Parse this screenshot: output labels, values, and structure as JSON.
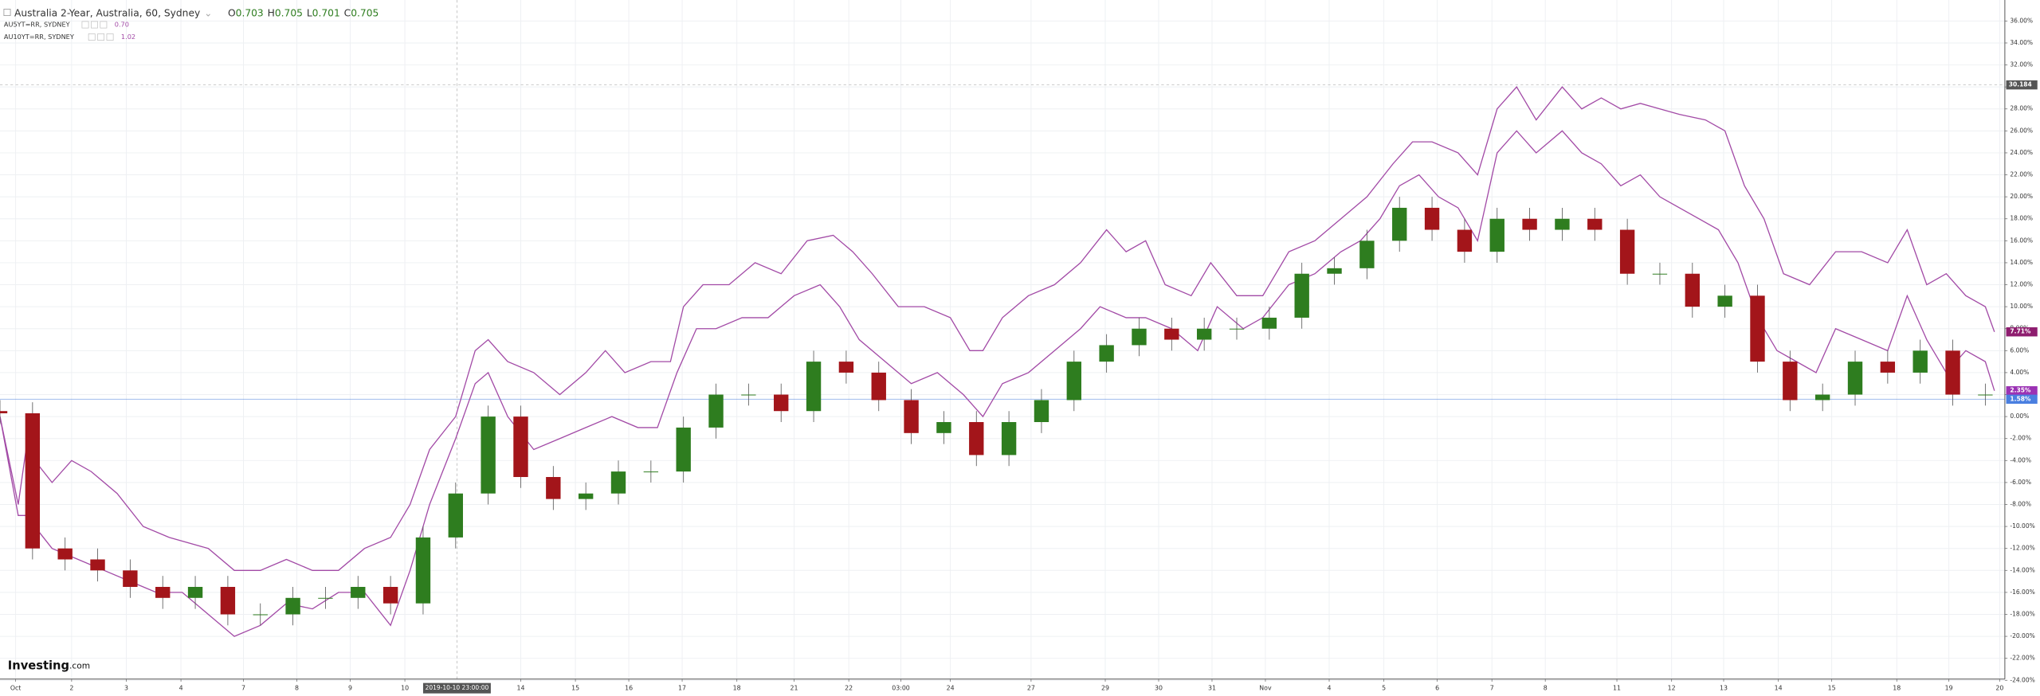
{
  "chart_data": {
    "type": "candlestick",
    "title": "Australia 2-Year, Australia, 60, Sydney",
    "ohlc": [
      {
        "label": "O",
        "value": 0.703
      },
      {
        "label": "H",
        "value": 0.705
      },
      {
        "label": "L",
        "value": 0.701
      },
      {
        "label": "C",
        "value": 0.705
      }
    ],
    "logo": "Investing",
    "logo_suffix": ".com",
    "up_color": "#2e7d1f",
    "down_color": "#a3151a",
    "xlim": [
      0,
      1540
    ],
    "ylim": [
      -24.6,
      37.2
    ],
    "grid": true,
    "xticks": [
      {
        "value": 12,
        "label": "Oct"
      },
      {
        "value": 55,
        "label": "2"
      },
      {
        "value": 97,
        "label": "3"
      },
      {
        "value": 139,
        "label": "4"
      },
      {
        "value": 187,
        "label": "7"
      },
      {
        "value": 228,
        "label": "8"
      },
      {
        "value": 269,
        "label": "9"
      },
      {
        "value": 311,
        "label": "10"
      },
      {
        "value": 400,
        "label": "14"
      },
      {
        "value": 442,
        "label": "15"
      },
      {
        "value": 483,
        "label": "16"
      },
      {
        "value": 524,
        "label": "17"
      },
      {
        "value": 566,
        "label": "18"
      },
      {
        "value": 610,
        "label": "21"
      },
      {
        "value": 652,
        "label": "22"
      },
      {
        "value": 692,
        "label": "03:00"
      },
      {
        "value": 730,
        "label": "24"
      },
      {
        "value": 792,
        "label": "27"
      },
      {
        "value": 849,
        "label": "29"
      },
      {
        "value": 890,
        "label": "30"
      },
      {
        "value": 931,
        "label": "31"
      },
      {
        "value": 972,
        "label": "Nov"
      },
      {
        "value": 1021,
        "label": "4"
      },
      {
        "value": 1063,
        "label": "5"
      },
      {
        "value": 1104,
        "label": "6"
      },
      {
        "value": 1146,
        "label": "7"
      },
      {
        "value": 1187,
        "label": "8"
      },
      {
        "value": 1242,
        "label": "11"
      },
      {
        "value": 1284,
        "label": "12"
      },
      {
        "value": 1324,
        "label": "13"
      },
      {
        "value": 1366,
        "label": "14"
      },
      {
        "value": 1407,
        "label": "15"
      },
      {
        "value": 1457,
        "label": "18"
      },
      {
        "value": 1497,
        "label": "19"
      },
      {
        "value": 1536,
        "label": "20"
      }
    ],
    "yticks": [
      {
        "value": 36,
        "label": "36.00%"
      },
      {
        "value": 34,
        "label": "34.00%"
      },
      {
        "value": 32,
        "label": "32.00%"
      },
      {
        "value": 30,
        "label": "30.00%"
      },
      {
        "value": 28,
        "label": "28.00%"
      },
      {
        "value": 26,
        "label": "26.00%"
      },
      {
        "value": 24,
        "label": "24.00%"
      },
      {
        "value": 22,
        "label": "22.00%"
      },
      {
        "value": 20,
        "label": "20.00%"
      },
      {
        "value": 18,
        "label": "18.00%"
      },
      {
        "value": 16,
        "label": "16.00%"
      },
      {
        "value": 14,
        "label": "14.00%"
      },
      {
        "value": 12,
        "label": "12.00%"
      },
      {
        "value": 10,
        "label": "10.00%"
      },
      {
        "value": 8,
        "label": "8.00%"
      },
      {
        "value": 6,
        "label": "6.00%"
      },
      {
        "value": 4,
        "label": "4.00%"
      },
      {
        "value": 2,
        "label": "2.00%"
      },
      {
        "value": 0,
        "label": "0.00%"
      },
      {
        "value": -2,
        "label": "-2.00%"
      },
      {
        "value": -4,
        "label": "-4.00%"
      },
      {
        "value": -6,
        "label": "-6.00%"
      },
      {
        "value": -8,
        "label": "-8.00%"
      },
      {
        "value": -10,
        "label": "-10.00%"
      },
      {
        "value": -12,
        "label": "-12.00%"
      },
      {
        "value": -14,
        "label": "-14.00%"
      },
      {
        "value": -16,
        "label": "-16.00%"
      },
      {
        "value": -18,
        "label": "-18.00%"
      },
      {
        "value": -20,
        "label": "-20.00%"
      },
      {
        "value": -22,
        "label": "-22.00%"
      },
      {
        "value": -24,
        "label": "-24.00%"
      }
    ],
    "crosshair": {
      "x": 351,
      "x_label": "2019-10-10 23:00:00",
      "y": 30.184
    },
    "candles": {
      "x": [
        0,
        25,
        50,
        75,
        100,
        125,
        150,
        175,
        200,
        225,
        250,
        275,
        300,
        325,
        350,
        375,
        400,
        425,
        450,
        475,
        500,
        525,
        550,
        575,
        600,
        625,
        650,
        675,
        700,
        725,
        750,
        775,
        800,
        825,
        850,
        875,
        900,
        925,
        950,
        975,
        1000,
        1025,
        1050,
        1075,
        1100,
        1125,
        1150,
        1175,
        1200,
        1225,
        1250,
        1275,
        1300,
        1325,
        1350,
        1375,
        1400,
        1425,
        1450,
        1475,
        1500,
        1525
      ],
      "open": [
        0.5,
        0.3,
        -12,
        -13,
        -14,
        -15.5,
        -16.5,
        -15.5,
        -18,
        -18,
        -16.5,
        -16.5,
        -15.5,
        -17,
        -11,
        -7,
        0,
        -5.5,
        -7.5,
        -7,
        -5,
        -5,
        -1,
        2,
        2,
        0.5,
        5,
        4,
        1.5,
        -1.5,
        -0.5,
        -3.5,
        -0.5,
        1.5,
        5,
        6.5,
        8,
        7,
        8,
        8,
        9,
        13,
        13.5,
        16,
        19,
        17,
        15,
        18,
        17,
        18,
        17,
        13,
        13,
        10,
        11,
        5,
        1.5,
        2,
        5,
        4,
        6,
        2
      ],
      "high": [
        1.5,
        1.3,
        -11,
        -12,
        -13,
        -14.5,
        -14.5,
        -14.5,
        -17,
        -15.5,
        -15.5,
        -14.5,
        -14.5,
        -10,
        -6,
        1,
        1,
        -4.5,
        -6,
        -4,
        -4,
        0,
        3,
        3,
        3,
        6,
        6,
        5,
        2.5,
        0.5,
        0.5,
        0.5,
        2.5,
        6,
        7.5,
        9,
        9,
        9,
        9,
        10,
        14,
        14.5,
        17,
        20,
        20,
        18,
        19,
        19,
        19,
        19,
        18,
        14,
        14,
        12,
        12,
        6,
        3,
        6,
        6,
        7,
        7,
        3
      ],
      "low": [
        -0.7,
        -13,
        -14,
        -15,
        -16.5,
        -17.5,
        -17.5,
        -19,
        -19,
        -19,
        -17.5,
        -17.5,
        -18,
        -18,
        -12,
        -8,
        -6.5,
        -8.5,
        -8.5,
        -8,
        -6,
        -6,
        -2,
        1,
        -0.5,
        -0.5,
        3,
        0.5,
        -2.5,
        -2.5,
        -4.5,
        -4.5,
        -1.5,
        0.5,
        4,
        5.5,
        6,
        6,
        7,
        7,
        8,
        12,
        12.5,
        15,
        16,
        14,
        14,
        16,
        16,
        16,
        12,
        12,
        9,
        9,
        4,
        0.5,
        0.5,
        1,
        3,
        3,
        1,
        1
      ],
      "close": [
        0.3,
        -12,
        -13,
        -14,
        -15.5,
        -16.5,
        -15.5,
        -18,
        -18,
        -16.5,
        -16.5,
        -15.5,
        -17,
        -11,
        -7,
        0,
        -5.5,
        -7.5,
        -7,
        -5,
        -5,
        -1,
        2,
        2,
        0.5,
        5,
        4,
        1.5,
        -1.5,
        -0.5,
        -3.5,
        -0.5,
        1.5,
        5,
        6.5,
        8,
        7,
        8,
        8,
        9,
        13,
        13.5,
        16,
        19,
        17,
        15,
        18,
        17,
        18,
        17,
        13,
        13,
        10,
        11,
        5,
        1.5,
        2,
        5,
        4,
        6,
        2,
        2
      ]
    },
    "series": [
      {
        "name": "AU5YT=RR, SYDNEY",
        "legend_value": "0.70",
        "color": "#a24aa6",
        "x": [
          0,
          14,
          20,
          40,
          60,
          80,
          100,
          120,
          140,
          160,
          180,
          200,
          220,
          240,
          260,
          280,
          300,
          315,
          330,
          350,
          365,
          375,
          390,
          410,
          430,
          450,
          470,
          490,
          505,
          520,
          535,
          550,
          570,
          590,
          610,
          630,
          645,
          660,
          680,
          700,
          720,
          740,
          755,
          770,
          790,
          810,
          830,
          845,
          865,
          880,
          900,
          920,
          935,
          955,
          970,
          990,
          1010,
          1030,
          1045,
          1060,
          1075,
          1090,
          1105,
          1120,
          1135,
          1150,
          1165,
          1180,
          1200,
          1215,
          1230,
          1245,
          1260,
          1275,
          1290,
          1305,
          1320,
          1335,
          1350,
          1365,
          1380,
          1395,
          1410,
          1430,
          1450,
          1465,
          1480,
          1495,
          1510,
          1525,
          1532
        ],
        "values": [
          0,
          -9,
          -9,
          -12,
          -13,
          -14,
          -15,
          -16,
          -16,
          -18,
          -20,
          -19,
          -17,
          -17.5,
          -16,
          -16,
          -19,
          -14,
          -8,
          -2,
          3,
          4,
          0,
          -3,
          -2,
          -1,
          0,
          -1,
          -1,
          4,
          8,
          8,
          9,
          9,
          11,
          12,
          10,
          7,
          5,
          3,
          4,
          2,
          0,
          3,
          4,
          6,
          8,
          10,
          9,
          9,
          8,
          6,
          10,
          8,
          9,
          12,
          13,
          15,
          16,
          18,
          21,
          22,
          20,
          19,
          16,
          24,
          26,
          24,
          26,
          24,
          23,
          21,
          22,
          20,
          19,
          18,
          17,
          14,
          9,
          6,
          5,
          4,
          8,
          7,
          6,
          11,
          7,
          4,
          6,
          5,
          2.35
        ]
      },
      {
        "name": "AU10YT=RR, SYDNEY",
        "legend_value": "1.02",
        "color": "#a24aa6",
        "x": [
          0,
          14,
          20,
          40,
          55,
          70,
          90,
          110,
          130,
          160,
          180,
          200,
          220,
          240,
          260,
          280,
          300,
          315,
          330,
          350,
          365,
          375,
          390,
          410,
          430,
          450,
          465,
          480,
          500,
          515,
          525,
          540,
          560,
          580,
          600,
          620,
          640,
          655,
          670,
          690,
          710,
          730,
          745,
          755,
          770,
          790,
          810,
          830,
          850,
          865,
          880,
          895,
          915,
          930,
          950,
          970,
          990,
          1010,
          1030,
          1050,
          1070,
          1085,
          1100,
          1120,
          1135,
          1150,
          1165,
          1180,
          1200,
          1215,
          1230,
          1245,
          1260,
          1275,
          1290,
          1310,
          1325,
          1340,
          1355,
          1370,
          1390,
          1410,
          1430,
          1450,
          1465,
          1480,
          1495,
          1510,
          1525,
          1532
        ],
        "values": [
          0,
          -8,
          -3,
          -6,
          -4,
          -5,
          -7,
          -10,
          -11,
          -12,
          -14,
          -14,
          -13,
          -14,
          -14,
          -12,
          -11,
          -8,
          -3,
          0,
          6,
          7,
          5,
          4,
          2,
          4,
          6,
          4,
          5,
          5,
          10,
          12,
          12,
          14,
          13,
          16,
          16.5,
          15,
          13,
          10,
          10,
          9,
          6,
          6,
          9,
          11,
          12,
          14,
          17,
          15,
          16,
          12,
          11,
          14,
          11,
          11,
          15,
          16,
          18,
          20,
          23,
          25,
          25,
          24,
          22,
          28,
          30,
          27,
          30,
          28,
          29,
          28,
          28.5,
          28,
          27.5,
          27,
          26,
          21,
          18,
          13,
          12,
          15,
          15,
          14,
          17,
          12,
          13,
          11,
          10,
          7.71
        ]
      }
    ],
    "markers": [
      {
        "value": 7.71,
        "label": "7.71%",
        "color": "#8e1d6f"
      },
      {
        "value": 2.35,
        "label": "2.35%",
        "color": "#9b32b4"
      },
      {
        "value": 1.58,
        "label": "1.58%",
        "color": "#4a7fe0",
        "line": true
      }
    ]
  }
}
